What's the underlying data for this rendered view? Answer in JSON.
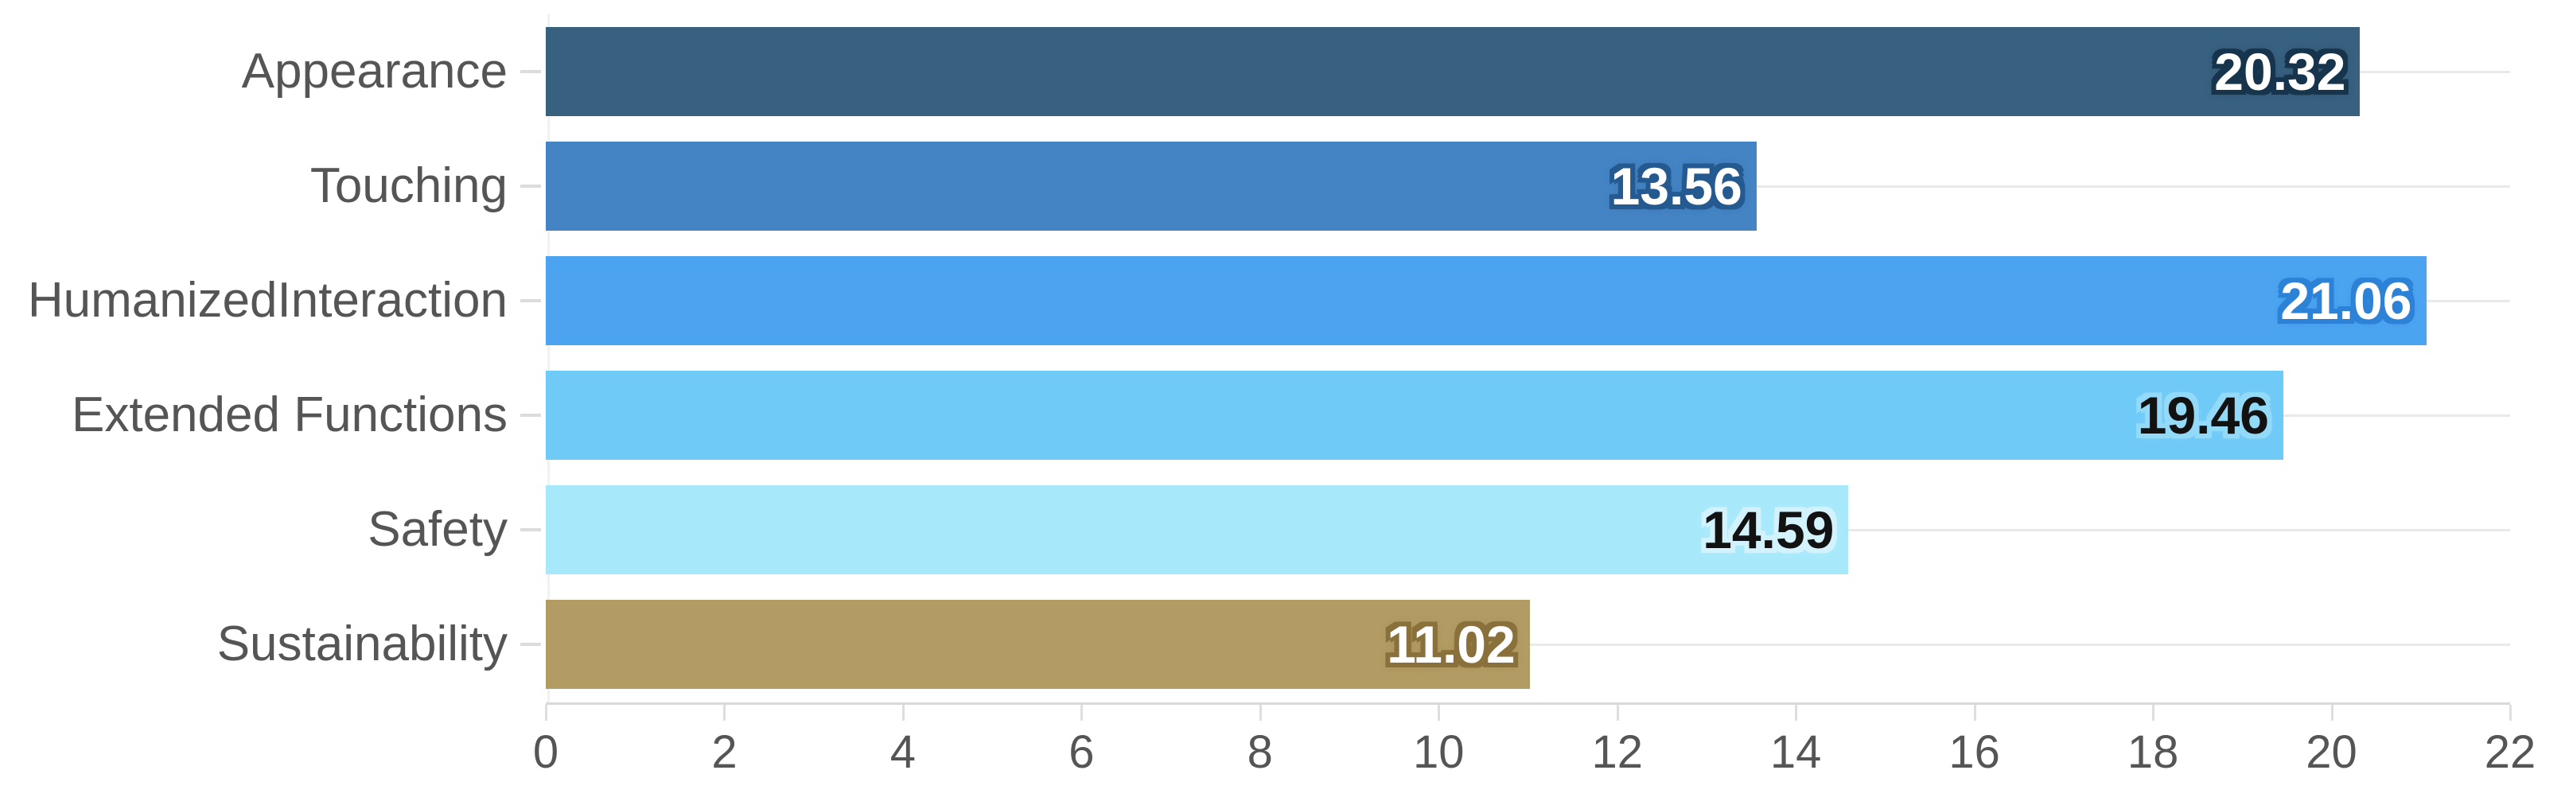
{
  "chart_data": {
    "type": "bar",
    "orientation": "horizontal",
    "title": "",
    "xlabel": "",
    "ylabel": "",
    "categories": [
      "Appearance",
      "Touching",
      "HumanizedInteraction",
      "Extended Functions",
      "Safety",
      "Sustainability"
    ],
    "values": [
      20.32,
      13.56,
      21.06,
      19.46,
      14.59,
      11.02
    ],
    "bar_colors": [
      "#38607f",
      "#4484c4",
      "#4ca4f0",
      "#70caf8",
      "#a7e9fb",
      "#b29c63"
    ],
    "value_text_colors": [
      "#ffffff",
      "#ffffff",
      "#ffffff",
      "#121212",
      "#121212",
      "#ffffff"
    ],
    "value_halo_colors": [
      "#17344d",
      "#255a91",
      "#2c82d6",
      "#93d9f8",
      "#d2f3fd",
      "#8a713c"
    ],
    "x_ticks": [
      "0",
      "2",
      "4",
      "6",
      "8",
      "10",
      "12",
      "14",
      "16",
      "18",
      "20",
      "22"
    ],
    "xlim": [
      0,
      22
    ],
    "grid": "horizontal",
    "legend": "none",
    "axis_line_color": "#d9d9d9",
    "gridline_color": "#e9e9e9",
    "tick_label_color": "#555555",
    "category_label_color": "#555555"
  }
}
